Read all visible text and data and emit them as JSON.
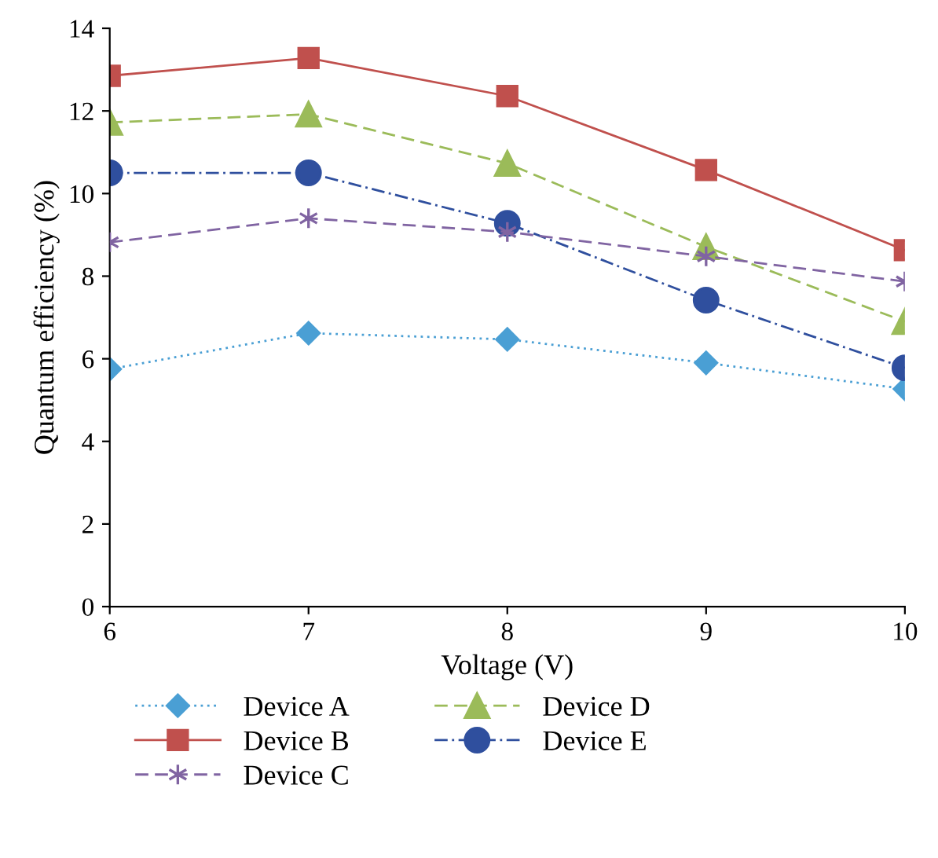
{
  "chart_data": {
    "type": "line",
    "xlabel": "Voltage (V)",
    "ylabel": "Quantum efficiency (%)",
    "x": [
      6,
      7,
      8,
      9,
      10
    ],
    "xlim": [
      6,
      10
    ],
    "xticks": [
      6,
      7,
      8,
      9,
      10
    ],
    "ylim": [
      0,
      14
    ],
    "yticks": [
      0,
      2,
      4,
      6,
      8,
      10,
      12,
      14
    ],
    "grid": false,
    "legend": "bottom",
    "series": [
      {
        "name": "Device A",
        "color": "#4a9fd4",
        "marker": "diamond",
        "line_style": "dotted",
        "values": [
          5.75,
          6.62,
          6.47,
          5.9,
          5.27
        ]
      },
      {
        "name": "Device B",
        "color": "#c0504d",
        "marker": "square",
        "line_style": "solid",
        "values": [
          12.85,
          13.28,
          12.36,
          10.57,
          8.63
        ]
      },
      {
        "name": "Device C",
        "color": "#8064a2",
        "marker": "cross",
        "line_style": "dashed",
        "values": [
          8.82,
          9.4,
          9.07,
          8.48,
          7.87
        ]
      },
      {
        "name": "Device D",
        "color": "#9bbb59",
        "marker": "triangle",
        "line_style": "dashed",
        "values": [
          11.72,
          11.92,
          10.73,
          8.71,
          6.9
        ]
      },
      {
        "name": "Device E",
        "color": "#2f4f9e",
        "marker": "circle",
        "line_style": "dashdot",
        "values": [
          10.5,
          10.5,
          9.28,
          7.42,
          5.78
        ]
      }
    ]
  }
}
